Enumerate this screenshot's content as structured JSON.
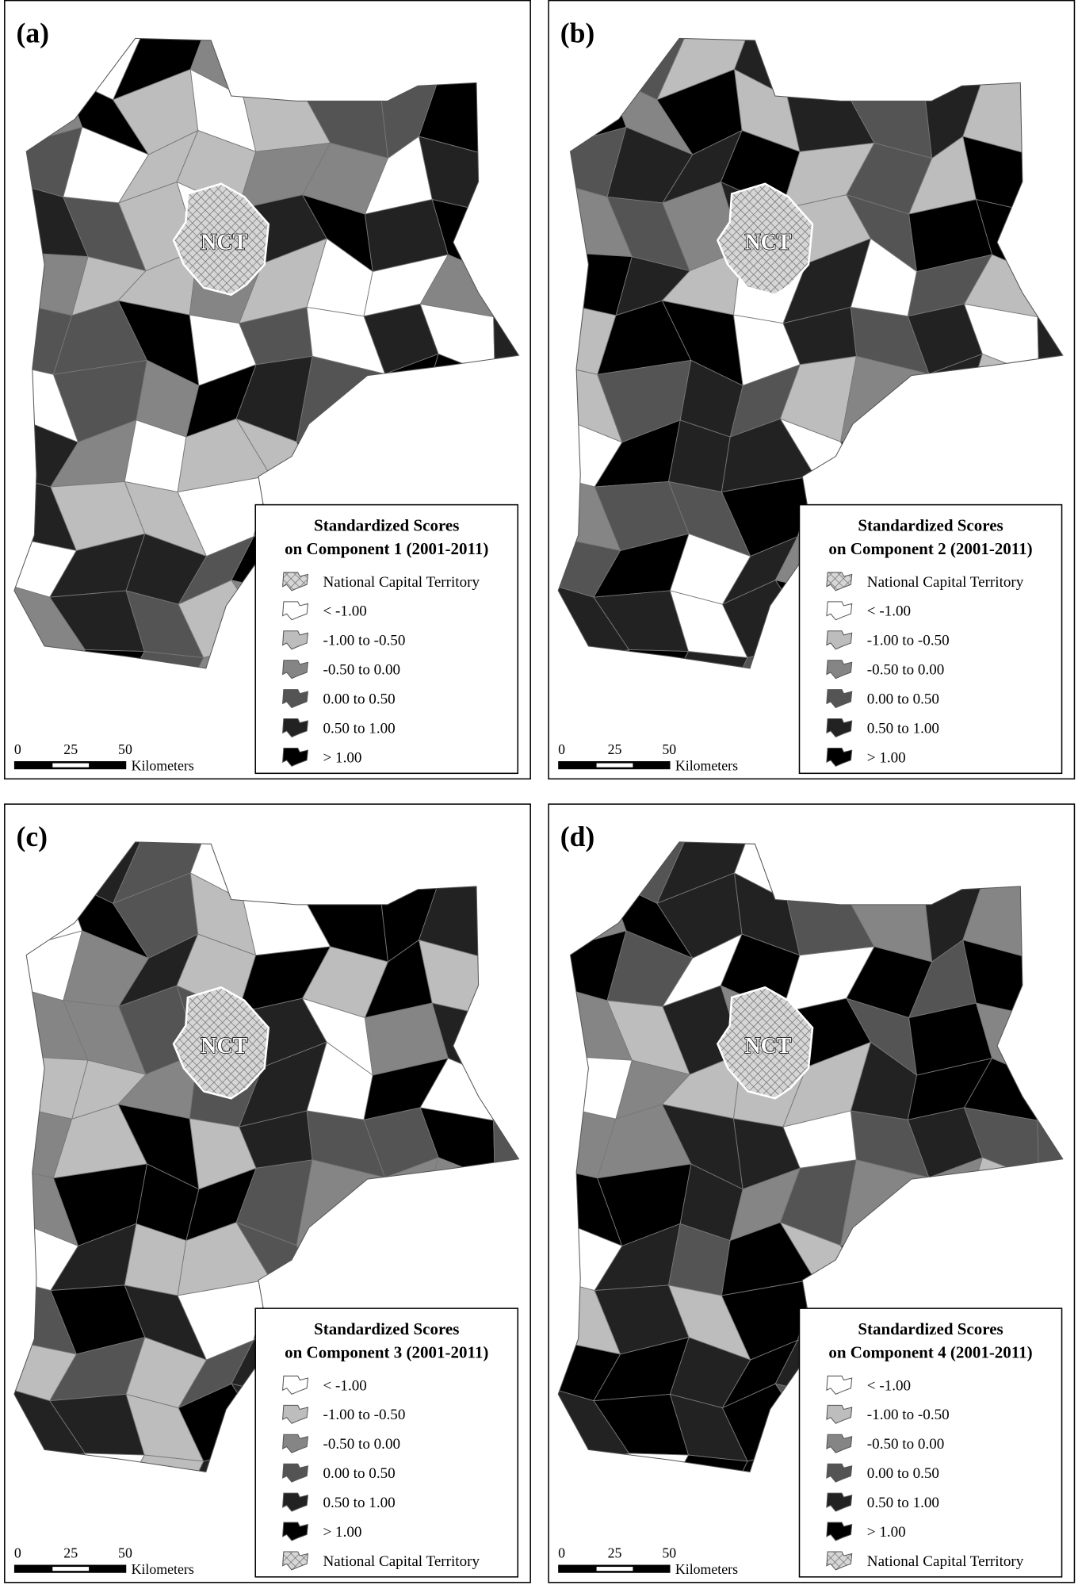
{
  "panels": [
    {
      "label": "(a)",
      "map_label": "NCT",
      "legend": {
        "title": [
          "Standardized Scores",
          "on Component 1 (2001-2011)"
        ],
        "items": [
          {
            "text": "National Capital Territory",
            "color": "hatch"
          },
          {
            "text": "< -1.00",
            "color": "#ffffff"
          },
          {
            "text": "-1.00 to -0.50",
            "color": "#bdbdbd"
          },
          {
            "text": "-0.50 to 0.00",
            "color": "#858585"
          },
          {
            "text": "0.00 to 0.50",
            "color": "#545454"
          },
          {
            "text": "0.50 to 1.00",
            "color": "#222222"
          },
          {
            "text": "> 1.00",
            "color": "#000000"
          }
        ]
      },
      "scale": {
        "ticks": [
          "0",
          "25",
          "50"
        ],
        "unit": "Kilometers"
      }
    },
    {
      "label": "(b)",
      "map_label": "NCT",
      "legend": {
        "title": [
          "Standardized Scores",
          "on Component 2 (2001-2011)"
        ],
        "items": [
          {
            "text": "National Capital Territory",
            "color": "hatch"
          },
          {
            "text": "< -1.00",
            "color": "#ffffff"
          },
          {
            "text": "-1.00 to -0.50",
            "color": "#bdbdbd"
          },
          {
            "text": "-0.50 to 0.00",
            "color": "#858585"
          },
          {
            "text": "0.00 to 0.50",
            "color": "#545454"
          },
          {
            "text": "0.50 to 1.00",
            "color": "#222222"
          },
          {
            "text": "> 1.00",
            "color": "#000000"
          }
        ]
      },
      "scale": {
        "ticks": [
          "0",
          "25",
          "50"
        ],
        "unit": "Kilometers"
      }
    },
    {
      "label": "(c)",
      "map_label": "NCT",
      "legend": {
        "title": [
          "Standardized Scores",
          "on Component 3 (2001-2011)"
        ],
        "items": [
          {
            "text": "< -1.00",
            "color": "#ffffff"
          },
          {
            "text": "-1.00 to -0.50",
            "color": "#bdbdbd"
          },
          {
            "text": "-0.50 to 0.00",
            "color": "#858585"
          },
          {
            "text": "0.00 to 0.50",
            "color": "#545454"
          },
          {
            "text": "0.50 to 1.00",
            "color": "#222222"
          },
          {
            "text": "> 1.00",
            "color": "#000000"
          },
          {
            "text": "National Capital Territory",
            "color": "hatch"
          }
        ]
      },
      "scale": {
        "ticks": [
          "0",
          "25",
          "50"
        ],
        "unit": "Kilometers"
      }
    },
    {
      "label": "(d)",
      "map_label": "NCT",
      "legend": {
        "title": [
          "Standardized Scores",
          "on Component 4 (2001-2011)"
        ],
        "items": [
          {
            "text": "< -1.00",
            "color": "#ffffff"
          },
          {
            "text": "-1.00 to -0.50",
            "color": "#bdbdbd"
          },
          {
            "text": "-0.50 to 0.00",
            "color": "#858585"
          },
          {
            "text": "0.00 to 0.50",
            "color": "#545454"
          },
          {
            "text": "0.50 to 1.00",
            "color": "#222222"
          },
          {
            "text": "> 1.00",
            "color": "#000000"
          },
          {
            "text": "National Capital Territory",
            "color": "hatch"
          }
        ]
      },
      "scale": {
        "ticks": [
          "0",
          "25",
          "50"
        ],
        "unit": "Kilometers"
      }
    }
  ]
}
